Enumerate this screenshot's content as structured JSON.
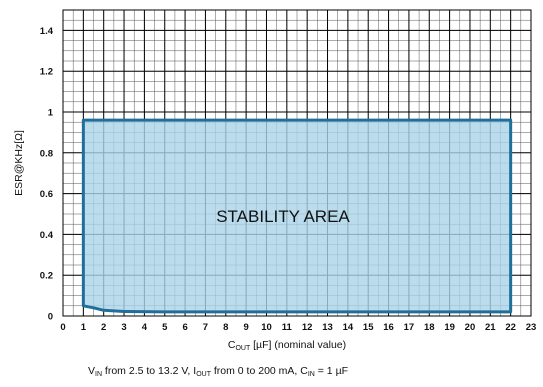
{
  "chart_data": {
    "type": "area",
    "xlabel": {
      "base": "C",
      "sub": "OUT",
      "rest": " [µF] (nominal value)"
    },
    "ylabel": "ESR@KHz[Ω]",
    "xlim": [
      0,
      23
    ],
    "ylim": [
      0,
      1.5
    ],
    "x_ticks": [
      0,
      1,
      2,
      3,
      4,
      5,
      6,
      7,
      8,
      9,
      10,
      11,
      12,
      13,
      14,
      15,
      16,
      17,
      18,
      19,
      20,
      21,
      22,
      23
    ],
    "y_ticks": [
      0,
      0.2,
      0.4,
      0.6,
      0.8,
      1,
      1.2,
      1.4
    ],
    "y_tick_labels": [
      "0",
      "0.2",
      "0.4",
      "0.6",
      "0.8",
      "1",
      "1.2",
      "1.4"
    ],
    "x_minor_step": 0.5,
    "y_minor_step": 0.05,
    "grid": true,
    "region": {
      "label": "STABILITY AREA",
      "fill_color": "#a9d3e8",
      "edge_color": "#1f6f9a",
      "upper": [
        [
          1,
          0.96
        ],
        [
          22,
          0.96
        ]
      ],
      "lower": [
        [
          1,
          0.05
        ],
        [
          1.5,
          0.04
        ],
        [
          2,
          0.028
        ],
        [
          3,
          0.022
        ],
        [
          5,
          0.02
        ],
        [
          10,
          0.02
        ],
        [
          22,
          0.02
        ]
      ]
    },
    "caption": [
      {
        "t": "V",
        "sub": false
      },
      {
        "t": "IN",
        "sub": true
      },
      {
        "t": " from 2.5 to 13.2 V, I",
        "sub": false
      },
      {
        "t": "OUT",
        "sub": true
      },
      {
        "t": " from 0 to 200 mA, C",
        "sub": false
      },
      {
        "t": "IN",
        "sub": true
      },
      {
        "t": " = 1 µF",
        "sub": false
      }
    ]
  }
}
